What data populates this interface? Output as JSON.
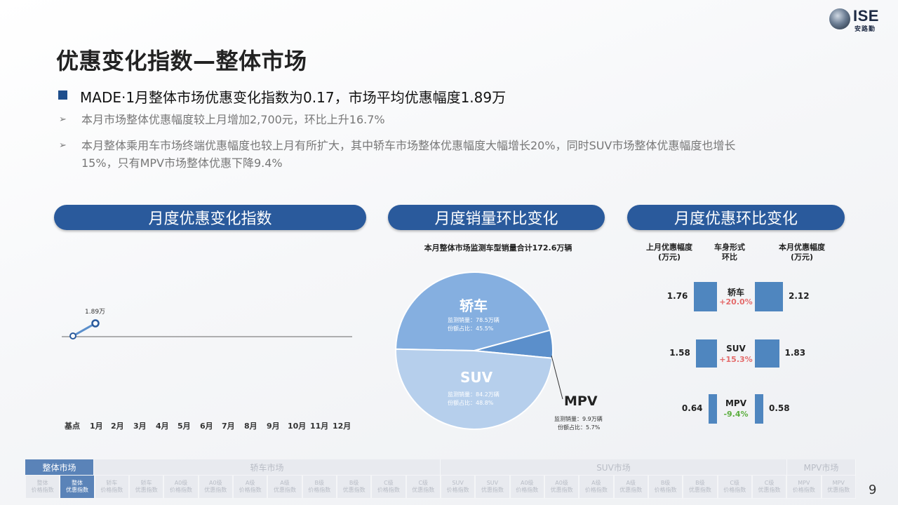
{
  "logo": {
    "text": "ISE",
    "sub": "安路勤"
  },
  "page_title": "优惠变化指数—整体市场",
  "main_bullet": "MADE·1月整体市场优惠变化指数为0.17，市场平均优惠幅度1.89万",
  "sub_bullets": [
    "本月市场整体优惠幅度较上月增加2,700元，环比上升16.7%",
    "本月整体乘用车市场终端优惠幅度也较上月有所扩大，其中轿车市场整体优惠幅度大幅增长20%，同时SUV市场整体优惠幅度也增长",
    "15%，只有MPV市场整体优惠下降9.4%"
  ],
  "panels": {
    "left_title": "月度优惠变化指数",
    "middle_title": "月度销量环比变化",
    "right_title": "月度优惠环比变化"
  },
  "line_chart": {
    "point_label": "1.89万",
    "months": [
      "基点",
      "1月",
      "2月",
      "3月",
      "4月",
      "5月",
      "6月",
      "7月",
      "8月",
      "9月",
      "10月",
      "11月",
      "12月"
    ]
  },
  "chart_data": [
    {
      "type": "line",
      "title": "月度优惠变化指数",
      "categories": [
        "基点",
        "1月",
        "2月",
        "3月",
        "4月",
        "5月",
        "6月",
        "7月",
        "8月",
        "9月",
        "10月",
        "11月",
        "12月"
      ],
      "series": [
        {
          "values": [
            0,
            0.17,
            null,
            null,
            null,
            null,
            null,
            null,
            null,
            null,
            null,
            null,
            null
          ]
        }
      ],
      "annotations": [
        "1.89万"
      ],
      "grid": false
    },
    {
      "type": "pie",
      "title": "本月整体市场监测车型销量合计172.6万辆",
      "labels": [
        "轿车",
        "SUV",
        "MPV"
      ],
      "values": [
        78.5,
        84.2,
        9.9
      ],
      "shares": [
        45.5,
        48.8,
        5.7
      ],
      "colors": [
        "#85afe0",
        "#b6cfec",
        "#5b8fcb"
      ]
    },
    {
      "type": "bar",
      "title": "月度优惠环比变化",
      "categories": [
        "轿车",
        "SUV",
        "MPV"
      ],
      "series": [
        {
          "name": "上月优惠幅度(万元)",
          "values": [
            1.76,
            1.58,
            0.64
          ]
        },
        {
          "name": "本月优惠幅度(万元)",
          "values": [
            2.12,
            1.83,
            0.58
          ]
        }
      ],
      "change": [
        "+20.0%",
        "+15.3%",
        "-9.4%"
      ]
    }
  ],
  "pie": {
    "title": "本月整体市场监测车型销量合计172.6万辆",
    "sedan": {
      "name": "轿车",
      "sales": "监测销量：78.5万辆",
      "share": "份额占比：45.5%"
    },
    "suv": {
      "name": "SUV",
      "sales": "监测销量：84.2万辆",
      "share": "份额占比：48.8%"
    },
    "mpv": {
      "name": "MPV",
      "sales": "监测销量：9.9万辆",
      "share": "份额占比：5.7%"
    }
  },
  "bars": {
    "col_left": "上月优惠幅度\n(万元)",
    "col_mid": "车身形式\n环比",
    "col_right": "本月优惠幅度\n(万元)",
    "rows": [
      {
        "name": "轿车",
        "prev": "1.76",
        "curr": "2.12",
        "pct": "+20.0%",
        "pct_color": "#e46b6b"
      },
      {
        "name": "SUV",
        "prev": "1.58",
        "curr": "1.83",
        "pct": "+15.3%",
        "pct_color": "#e46b6b"
      },
      {
        "name": "MPV",
        "prev": "0.64",
        "curr": "0.58",
        "pct": "-9.4%",
        "pct_color": "#5cae3f"
      }
    ]
  },
  "nav": {
    "groups": [
      {
        "label": "整体市场",
        "active": true
      },
      {
        "label": "轿车市场",
        "active": false
      },
      {
        "label": "SUV市场",
        "active": false
      },
      {
        "label": "MPV市场",
        "active": false
      }
    ],
    "items": [
      {
        "l1": "整体",
        "l2": "价格指数",
        "active": false
      },
      {
        "l1": "整体",
        "l2": "优惠指数",
        "active": true
      },
      {
        "l1": "轿车",
        "l2": "价格指数",
        "active": false
      },
      {
        "l1": "轿车",
        "l2": "优惠指数",
        "active": false
      },
      {
        "l1": "A0级",
        "l2": "价格指数",
        "active": false
      },
      {
        "l1": "A0级",
        "l2": "优惠指数",
        "active": false
      },
      {
        "l1": "A级",
        "l2": "价格指数",
        "active": false
      },
      {
        "l1": "A级",
        "l2": "优惠指数",
        "active": false
      },
      {
        "l1": "B级",
        "l2": "价格指数",
        "active": false
      },
      {
        "l1": "B级",
        "l2": "优惠指数",
        "active": false
      },
      {
        "l1": "C级",
        "l2": "价格指数",
        "active": false
      },
      {
        "l1": "C级",
        "l2": "优惠指数",
        "active": false
      },
      {
        "l1": "SUV",
        "l2": "价格指数",
        "active": false
      },
      {
        "l1": "SUV",
        "l2": "优惠指数",
        "active": false
      },
      {
        "l1": "A0级",
        "l2": "价格指数",
        "active": false
      },
      {
        "l1": "A0级",
        "l2": "优惠指数",
        "active": false
      },
      {
        "l1": "A级",
        "l2": "价格指数",
        "active": false
      },
      {
        "l1": "A级",
        "l2": "优惠指数",
        "active": false
      },
      {
        "l1": "B级",
        "l2": "价格指数",
        "active": false
      },
      {
        "l1": "B级",
        "l2": "优惠指数",
        "active": false
      },
      {
        "l1": "C级",
        "l2": "价格指数",
        "active": false
      },
      {
        "l1": "C级",
        "l2": "优惠指数",
        "active": false
      },
      {
        "l1": "MPV",
        "l2": "价格指数",
        "active": false
      },
      {
        "l1": "MPV",
        "l2": "优惠指数",
        "active": false
      }
    ]
  },
  "page_number": "9"
}
